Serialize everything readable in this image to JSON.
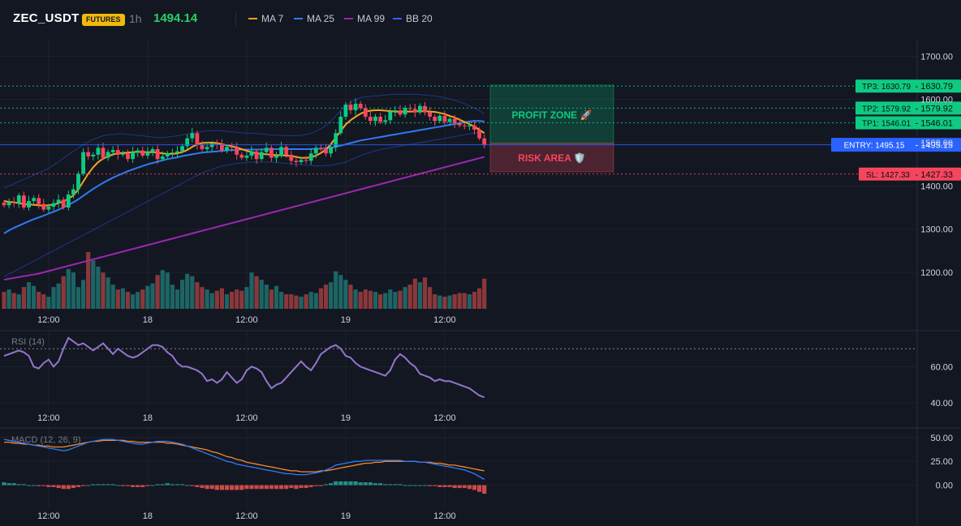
{
  "header": {
    "symbol": "ZEC_USDT",
    "badge": "FUTURES",
    "timeframe": "1h",
    "price": "1494.14",
    "legend": [
      {
        "label": "MA 7",
        "color": "#f7a221"
      },
      {
        "label": "MA 25",
        "color": "#2f7bf5"
      },
      {
        "label": "MA 99",
        "color": "#9c27b0"
      },
      {
        "label": "BB 20",
        "color": "#2962ff"
      }
    ]
  },
  "zones": {
    "profit_label": "PROFIT ZONE 🚀",
    "risk_label": "RISK AREA 🛡️"
  },
  "chart_data": [
    {
      "type": "candlestick",
      "title": "",
      "ylim": [
        1110,
        1740
      ],
      "y_ticks": [
        1200,
        1300,
        1400,
        1500,
        1600,
        1700
      ],
      "y_tick_labels": [
        "1200.00",
        "1300.00",
        "1400.00",
        "1500.00",
        "1600.00",
        "1700.00"
      ],
      "x_tick_labels": [
        "12:00",
        "18",
        "12:00",
        "19",
        "12:00"
      ],
      "x_tick_index": [
        9,
        29,
        49,
        69,
        89
      ],
      "closes": [
        1355,
        1362,
        1360,
        1378,
        1350,
        1365,
        1372,
        1358,
        1345,
        1352,
        1360,
        1368,
        1350,
        1380,
        1392,
        1428,
        1478,
        1468,
        1472,
        1488,
        1465,
        1478,
        1483,
        1472,
        1475,
        1462,
        1478,
        1482,
        1470,
        1478,
        1485,
        1462,
        1468,
        1475,
        1477,
        1480,
        1492,
        1510,
        1522,
        1495,
        1485,
        1490,
        1498,
        1496,
        1482,
        1490,
        1488,
        1472,
        1465,
        1470,
        1480,
        1462,
        1478,
        1488,
        1465,
        1470,
        1490,
        1472,
        1458,
        1455,
        1460,
        1458,
        1475,
        1488,
        1485,
        1475,
        1490,
        1522,
        1560,
        1588,
        1575,
        1590,
        1580,
        1560,
        1550,
        1560,
        1548,
        1552,
        1572,
        1575,
        1565,
        1580,
        1578,
        1570,
        1585,
        1570,
        1560,
        1550,
        1562,
        1548,
        1555,
        1545,
        1540,
        1538,
        1540,
        1530,
        1510,
        1494
      ],
      "ma7": [
        1365,
        1363,
        1362,
        1360,
        1358,
        1357,
        1356,
        1355,
        1354,
        1355,
        1357,
        1360,
        1364,
        1370,
        1378,
        1392,
        1410,
        1428,
        1443,
        1455,
        1463,
        1468,
        1473,
        1475,
        1476,
        1477,
        1478,
        1479,
        1478,
        1478,
        1478,
        1477,
        1475,
        1474,
        1474,
        1475,
        1478,
        1483,
        1490,
        1496,
        1499,
        1500,
        1500,
        1499,
        1496,
        1494,
        1492,
        1489,
        1485,
        1481,
        1478,
        1475,
        1474,
        1473,
        1472,
        1471,
        1471,
        1470,
        1469,
        1467,
        1465,
        1465,
        1466,
        1470,
        1476,
        1484,
        1496,
        1512,
        1527,
        1542,
        1552,
        1560,
        1567,
        1572,
        1574,
        1575,
        1575,
        1574,
        1573,
        1572,
        1571,
        1572,
        1572,
        1572,
        1573,
        1573,
        1572,
        1571,
        1569,
        1566,
        1562,
        1558,
        1553,
        1548,
        1543,
        1537,
        1530,
        1522
      ],
      "ma25": [
        1290,
        1297,
        1303,
        1308,
        1313,
        1318,
        1323,
        1327,
        1331,
        1336,
        1340,
        1345,
        1350,
        1356,
        1362,
        1369,
        1377,
        1385,
        1393,
        1400,
        1407,
        1413,
        1419,
        1424,
        1429,
        1434,
        1438,
        1442,
        1446,
        1450,
        1453,
        1456,
        1459,
        1462,
        1464,
        1466,
        1469,
        1471,
        1473,
        1475,
        1477,
        1478,
        1479,
        1480,
        1481,
        1482,
        1483,
        1483,
        1484,
        1484,
        1484,
        1484,
        1484,
        1485,
        1485,
        1485,
        1485,
        1485,
        1485,
        1485,
        1485,
        1485,
        1485,
        1486,
        1486,
        1487,
        1488,
        1490,
        1493,
        1496,
        1499,
        1502,
        1505,
        1507,
        1509,
        1511,
        1513,
        1515,
        1517,
        1519,
        1521,
        1523,
        1525,
        1527,
        1529,
        1531,
        1533,
        1535,
        1537,
        1539,
        1541,
        1543,
        1545,
        1547,
        1549,
        1550,
        1550,
        1549
      ],
      "ma99": [
        1183,
        1185,
        1187,
        1189,
        1191,
        1193,
        1195,
        1197,
        1200,
        1203,
        1206,
        1209,
        1212,
        1215,
        1218,
        1221,
        1224,
        1227,
        1230,
        1233,
        1236,
        1239,
        1242,
        1245,
        1248,
        1251,
        1254,
        1257,
        1260,
        1263,
        1266,
        1269,
        1272,
        1275,
        1278,
        1281,
        1284,
        1287,
        1290,
        1293,
        1296,
        1299,
        1302,
        1305,
        1308,
        1311,
        1314,
        1317,
        1320,
        1323,
        1326,
        1329,
        1332,
        1335,
        1338,
        1341,
        1344,
        1347,
        1350,
        1353,
        1356,
        1359,
        1362,
        1365,
        1368,
        1371,
        1374,
        1377,
        1380,
        1383,
        1386,
        1389,
        1392,
        1395,
        1398,
        1401,
        1404,
        1407,
        1410,
        1413,
        1416,
        1419,
        1422,
        1425,
        1428,
        1431,
        1434,
        1437,
        1440,
        1443,
        1446,
        1449,
        1452,
        1455,
        1458,
        1461,
        1464,
        1467
      ],
      "bb_upper": [
        1395,
        1400,
        1405,
        1410,
        1415,
        1420,
        1425,
        1430,
        1435,
        1440,
        1448,
        1456,
        1464,
        1472,
        1480,
        1488,
        1495,
        1502,
        1508,
        1512,
        1516,
        1518,
        1519,
        1520,
        1520,
        1519,
        1518,
        1517,
        1516,
        1514,
        1513,
        1512,
        1512,
        1513,
        1514,
        1516,
        1518,
        1520,
        1522,
        1524,
        1526,
        1527,
        1528,
        1528,
        1527,
        1526,
        1525,
        1524,
        1523,
        1522,
        1522,
        1521,
        1520,
        1519,
        1518,
        1517,
        1517,
        1516,
        1516,
        1516,
        1517,
        1519,
        1522,
        1526,
        1532,
        1540,
        1550,
        1562,
        1574,
        1586,
        1594,
        1600,
        1604,
        1606,
        1607,
        1608,
        1609,
        1610,
        1611,
        1612,
        1612,
        1612,
        1612,
        1612,
        1611,
        1610,
        1609,
        1608,
        1606,
        1604,
        1601,
        1598,
        1594,
        1590,
        1585,
        1580,
        1574,
        1567
      ],
      "bb_lower": [
        1190,
        1196,
        1202,
        1208,
        1214,
        1220,
        1226,
        1232,
        1238,
        1244,
        1250,
        1256,
        1262,
        1268,
        1274,
        1280,
        1286,
        1292,
        1298,
        1304,
        1310,
        1316,
        1322,
        1328,
        1334,
        1340,
        1346,
        1352,
        1358,
        1364,
        1370,
        1376,
        1382,
        1388,
        1394,
        1400,
        1406,
        1412,
        1418,
        1424,
        1430,
        1434,
        1438,
        1442,
        1446,
        1448,
        1450,
        1452,
        1453,
        1454,
        1455,
        1455,
        1455,
        1455,
        1455,
        1454,
        1453,
        1452,
        1451,
        1450,
        1449,
        1448,
        1447,
        1446,
        1446,
        1447,
        1448,
        1450,
        1452,
        1455,
        1460,
        1465,
        1470,
        1474,
        1478,
        1481,
        1484,
        1486,
        1488,
        1490,
        1492,
        1494,
        1496,
        1498,
        1500,
        1502,
        1504,
        1506,
        1508,
        1510,
        1512,
        1514,
        1516,
        1518,
        1520,
        1522,
        1524,
        1526
      ],
      "volume": [
        14,
        16,
        13,
        12,
        18,
        22,
        19,
        14,
        12,
        10,
        18,
        21,
        27,
        33,
        30,
        18,
        24,
        47,
        40,
        35,
        30,
        26,
        20,
        16,
        17,
        14,
        12,
        14,
        16,
        19,
        21,
        28,
        32,
        30,
        20,
        16,
        24,
        29,
        27,
        22,
        18,
        16,
        13,
        15,
        17,
        12,
        14,
        16,
        15,
        18,
        30,
        27,
        24,
        20,
        16,
        19,
        14,
        12,
        12,
        11,
        10,
        12,
        14,
        13,
        17,
        20,
        22,
        31,
        28,
        24,
        20,
        16,
        14,
        16,
        15,
        14,
        12,
        13,
        16,
        14,
        15,
        18,
        20,
        25,
        22,
        26,
        18,
        12,
        11,
        10,
        11,
        12,
        13,
        13,
        12,
        14,
        17,
        25
      ],
      "levels": [
        {
          "label": "TP3: 1630.79",
          "value": 1630.79,
          "tag": "1630.79",
          "color": "#0ecb81"
        },
        {
          "label": "TP2: 1579.92",
          "value": 1579.92,
          "tag": "1579.92",
          "color": "#0ecb81"
        },
        {
          "label": "TP1: 1546.01",
          "value": 1546.01,
          "tag": "1546.01",
          "color": "#0ecb81"
        },
        {
          "label": "ENTRY: 1495.15",
          "value": 1495.15,
          "tag": "1495.15",
          "color": "#2962ff"
        },
        {
          "label": "SL: 1427.33",
          "value": 1427.33,
          "tag": "1427.33",
          "color": "#f6465d"
        }
      ]
    },
    {
      "type": "line",
      "title": "RSI (14)",
      "ylim": [
        35,
        80
      ],
      "y_ticks": [
        40,
        60
      ],
      "y_tick_labels": [
        "40.00",
        "60.00"
      ],
      "overbought": 70,
      "x_tick_labels": [
        "12:00",
        "18",
        "12:00",
        "19",
        "12:00"
      ],
      "values": [
        66,
        67,
        68,
        69,
        68,
        66,
        60,
        59,
        62,
        64,
        60,
        63,
        70,
        76,
        74,
        72,
        73,
        71,
        69,
        71,
        73,
        70,
        67,
        70,
        68,
        66,
        65,
        66,
        68,
        70,
        72,
        72,
        71,
        68,
        66,
        62,
        60,
        60,
        59,
        58,
        56,
        52,
        53,
        51,
        53,
        57,
        54,
        51,
        53,
        58,
        60,
        59,
        57,
        52,
        48,
        50,
        51,
        54,
        57,
        60,
        63,
        60,
        58,
        62,
        67,
        69,
        71,
        72,
        70,
        66,
        65,
        62,
        60,
        59,
        58,
        57,
        56,
        55,
        58,
        64,
        67,
        65,
        62,
        60,
        56,
        55,
        54,
        52,
        53,
        52,
        52,
        51,
        50,
        49,
        48,
        46,
        44,
        43
      ]
    },
    {
      "type": "line",
      "title": "MACD (12, 26, 9)",
      "ylim": [
        -25,
        60
      ],
      "y_ticks": [
        0,
        25,
        50
      ],
      "y_tick_labels": [
        "0.00",
        "25.00",
        "50.00"
      ],
      "x_tick_labels": [
        "12:00",
        "18",
        "12:00",
        "19",
        "12:00"
      ],
      "macd": [
        48,
        47,
        46,
        45,
        44,
        43,
        42,
        41,
        40,
        39,
        38,
        37,
        36,
        37,
        39,
        41,
        43,
        45,
        46,
        47,
        48,
        48,
        48,
        47,
        46,
        45,
        44,
        43,
        43,
        44,
        45,
        46,
        46,
        46,
        45,
        44,
        43,
        41,
        39,
        37,
        35,
        33,
        31,
        29,
        27,
        25,
        24,
        22,
        21,
        20,
        19,
        18,
        17,
        16,
        15,
        14,
        13,
        12,
        12,
        11,
        11,
        11,
        12,
        13,
        14,
        16,
        18,
        21,
        22,
        23,
        24,
        25,
        25,
        26,
        26,
        26,
        26,
        26,
        26,
        26,
        26,
        25,
        25,
        25,
        24,
        24,
        23,
        22,
        21,
        20,
        19,
        18,
        17,
        16,
        14,
        12,
        9,
        6
      ],
      "signal": [
        45,
        45,
        44,
        44,
        43,
        43,
        42,
        42,
        41,
        41,
        40,
        40,
        40,
        41,
        42,
        43,
        44,
        45,
        46,
        46,
        47,
        47,
        47,
        47,
        47,
        46,
        46,
        45,
        45,
        45,
        45,
        45,
        45,
        44,
        44,
        43,
        42,
        41,
        40,
        39,
        38,
        37,
        35,
        34,
        32,
        30,
        29,
        27,
        26,
        24,
        23,
        22,
        21,
        20,
        19,
        18,
        17,
        16,
        15,
        15,
        14,
        14,
        14,
        14,
        15,
        15,
        16,
        17,
        18,
        19,
        20,
        21,
        22,
        23,
        23,
        24,
        24,
        25,
        25,
        25,
        25,
        25,
        25,
        25,
        24,
        24,
        24,
        23,
        23,
        22,
        21,
        21,
        20,
        19,
        18,
        17,
        16,
        15
      ],
      "histogram": [
        3,
        2,
        2,
        1,
        1,
        0,
        0,
        -1,
        -1,
        -2,
        -2,
        -3,
        -4,
        -4,
        -3,
        -2,
        -1,
        0,
        1,
        1,
        1,
        1,
        1,
        0,
        -1,
        -1,
        -2,
        -2,
        -2,
        -1,
        0,
        1,
        1,
        2,
        1,
        1,
        1,
        0,
        -1,
        -2,
        -3,
        -4,
        -4,
        -5,
        -5,
        -5,
        -5,
        -5,
        -5,
        -4,
        -4,
        -4,
        -4,
        -4,
        -4,
        -4,
        -4,
        -4,
        -3,
        -4,
        -3,
        -3,
        -2,
        -1,
        -1,
        1,
        2,
        4,
        4,
        4,
        4,
        4,
        3,
        3,
        3,
        2,
        2,
        1,
        1,
        1,
        1,
        0,
        0,
        0,
        0,
        0,
        -1,
        -1,
        -2,
        -2,
        -2,
        -3,
        -3,
        -3,
        -4,
        -5,
        -7,
        -9
      ]
    }
  ]
}
